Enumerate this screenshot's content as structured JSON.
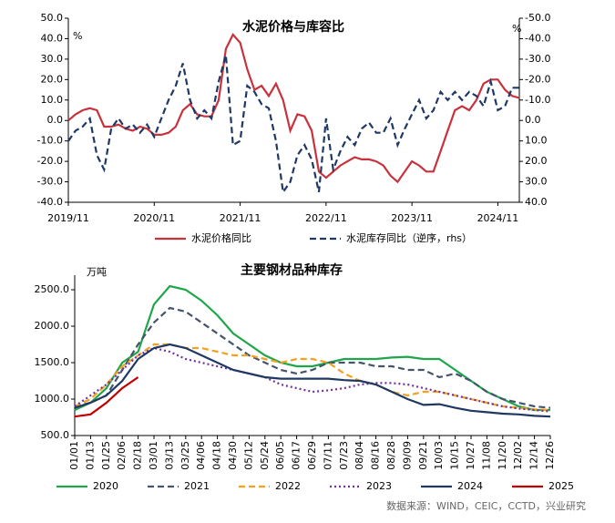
{
  "chart_data": [
    {
      "type": "line",
      "title": "水泥价格与库容比",
      "unit": "%",
      "y2_unit": "%",
      "categories": [
        "2019/11",
        null,
        null,
        null,
        null,
        null,
        null,
        null,
        null,
        null,
        null,
        null,
        "2020/11",
        null,
        null,
        null,
        null,
        null,
        null,
        null,
        null,
        null,
        null,
        null,
        "2021/11",
        null,
        null,
        null,
        null,
        null,
        null,
        null,
        null,
        null,
        null,
        null,
        "2022/11",
        null,
        null,
        null,
        null,
        null,
        null,
        null,
        null,
        null,
        null,
        null,
        "2023/11",
        null,
        null,
        null,
        null,
        null,
        null,
        null,
        null,
        null,
        null,
        null,
        "2024/11",
        null,
        null,
        null
      ],
      "ylim": [
        -40,
        50
      ],
      "yticks": [
        {
          "value": 50,
          "label": "50.0"
        },
        {
          "value": 40,
          "label": "40.0"
        },
        {
          "value": 30,
          "label": "30.0"
        },
        {
          "value": 20,
          "label": "20.0"
        },
        {
          "value": 10,
          "label": "10.0"
        },
        {
          "value": 0,
          "label": "0.0"
        },
        {
          "value": -10,
          "label": "-10.0"
        },
        {
          "value": -20,
          "label": "-20.0"
        },
        {
          "value": -30,
          "label": "-30.0"
        },
        {
          "value": -40,
          "label": "-40.0"
        }
      ],
      "y2lim": [
        40,
        -50
      ],
      "y2ticks": [
        {
          "value": -50,
          "label": "-50.0"
        },
        {
          "value": -40,
          "label": "-40.0"
        },
        {
          "value": -30,
          "label": "-30.0"
        },
        {
          "value": -20,
          "label": "-20.0"
        },
        {
          "value": -10,
          "label": "-10.0"
        },
        {
          "value": 0,
          "label": "0.0"
        },
        {
          "value": 10,
          "label": "10.0"
        },
        {
          "value": 20,
          "label": "20.0"
        },
        {
          "value": 30,
          "label": "30.0"
        },
        {
          "value": 40,
          "label": "40.0"
        }
      ],
      "series": [
        {
          "name": "水泥价格同比",
          "color": "#c8323c",
          "line_style": "solid",
          "values": [
            0,
            3,
            5,
            6,
            5,
            -3,
            -3,
            -2,
            -4,
            -5,
            -3,
            -4,
            -7,
            -7,
            -6,
            -3,
            5,
            8,
            3,
            2,
            2,
            10,
            35,
            42,
            38,
            25,
            15,
            17,
            12,
            18,
            10,
            -5,
            3,
            2,
            -5,
            -25,
            -28,
            -25,
            -22,
            -20,
            -18,
            -19,
            -19,
            -20,
            -22,
            -27,
            -30,
            -25,
            -20,
            -22,
            -25,
            -25,
            -15,
            -5,
            5,
            7,
            5,
            10,
            18,
            20,
            20,
            15,
            12,
            11
          ]
        },
        {
          "name": "水泥库存同比（逆序，rhs）",
          "color": "#1f3864",
          "line_style": "dashed",
          "axis": "y2",
          "values": [
            10,
            5,
            3,
            -1,
            17,
            24,
            4,
            -1,
            4,
            2,
            6,
            2,
            8,
            -1,
            -10,
            -17,
            -28,
            -10,
            -1,
            -5,
            -1,
            -19,
            -32,
            12,
            10,
            -17,
            -14,
            -8,
            -6,
            10,
            35,
            30,
            17,
            12,
            19,
            35,
            -1,
            24,
            15,
            8,
            12,
            4,
            1,
            6,
            6,
            -1,
            12,
            4,
            -3,
            -10,
            -1,
            -5,
            -14,
            -10,
            -14,
            -10,
            -14,
            -12,
            -7,
            -19,
            -5,
            -7,
            -16,
            -16
          ]
        }
      ]
    },
    {
      "type": "line",
      "title": "主要钢材品种库存",
      "unit": "万吨",
      "categories": [
        "01/01",
        "01/13",
        "01/25",
        "02/06",
        "02/18",
        "03/01",
        "03/13",
        "03/25",
        "04/06",
        "04/18",
        "04/30",
        "05/12",
        "05/24",
        "06/05",
        "06/17",
        "06/29",
        "07/11",
        "07/23",
        "08/04",
        "08/16",
        "08/28",
        "09/09",
        "09/21",
        "10/03",
        "10/15",
        "10/27",
        "11/08",
        "11/20",
        "12/02",
        "12/14",
        "12/26"
      ],
      "ylim": [
        500,
        2700
      ],
      "yticks": [
        {
          "value": 500,
          "label": "500.0"
        },
        {
          "value": 1000,
          "label": "1000.0"
        },
        {
          "value": 1500,
          "label": "1500.0"
        },
        {
          "value": 2000,
          "label": "2000.0"
        },
        {
          "value": 2500,
          "label": "2500.0"
        }
      ],
      "series": [
        {
          "name": "2020",
          "color": "#1fa64a",
          "line_style": "solid",
          "values": [
            850,
            950,
            1150,
            1500,
            1650,
            2300,
            2550,
            2500,
            2350,
            2150,
            1900,
            1750,
            1600,
            1500,
            1450,
            1450,
            1500,
            1550,
            1550,
            1550,
            1570,
            1580,
            1550,
            1550,
            1400,
            1250,
            1100,
            1000,
            900,
            850,
            850
          ]
        },
        {
          "name": "2021",
          "color": "#44546a",
          "line_style": "dashed",
          "values": [
            900,
            950,
            1050,
            1400,
            1750,
            2050,
            2250,
            2200,
            2050,
            1900,
            1750,
            1600,
            1500,
            1400,
            1350,
            1400,
            1500,
            1500,
            1500,
            1450,
            1450,
            1400,
            1400,
            1300,
            1350,
            1250,
            1100,
            1000,
            950,
            900,
            880
          ]
        },
        {
          "name": "2022",
          "color": "#f4a020",
          "line_style": "dashed",
          "values": [
            900,
            1000,
            1200,
            1450,
            1600,
            1750,
            1750,
            1700,
            1700,
            1650,
            1600,
            1600,
            1550,
            1500,
            1550,
            1550,
            1500,
            1350,
            1250,
            1200,
            1100,
            1050,
            1100,
            1100,
            1050,
            1000,
            950,
            900,
            880,
            860,
            850
          ]
        },
        {
          "name": "2023",
          "color": "#7030a0",
          "line_style": "dotted",
          "values": [
            900,
            1050,
            1200,
            1400,
            1600,
            1700,
            1650,
            1550,
            1500,
            1450,
            1400,
            1350,
            1300,
            1200,
            1150,
            1100,
            1120,
            1150,
            1200,
            1220,
            1220,
            1200,
            1150,
            1100,
            1050,
            1000,
            950,
            900,
            870,
            850,
            830
          ]
        },
        {
          "name": "2024",
          "color": "#1f3864",
          "line_style": "solid",
          "values": [
            880,
            950,
            1050,
            1250,
            1550,
            1700,
            1750,
            1700,
            1600,
            1500,
            1400,
            1350,
            1300,
            1280,
            1280,
            1280,
            1280,
            1260,
            1250,
            1200,
            1100,
            1000,
            920,
            930,
            880,
            840,
            820,
            800,
            790,
            770,
            760
          ]
        },
        {
          "name": "2025",
          "color": "#c00000",
          "line_style": "solid",
          "values": [
            760,
            790,
            950,
            1150,
            1300,
            null,
            null,
            null,
            null,
            null,
            null,
            null,
            null,
            null,
            null,
            null,
            null,
            null,
            null,
            null,
            null,
            null,
            null,
            null,
            null,
            null,
            null,
            null,
            null,
            null,
            null
          ]
        }
      ]
    }
  ],
  "source": "数据来源：WIND，CEIC，CCTD，兴业研究"
}
